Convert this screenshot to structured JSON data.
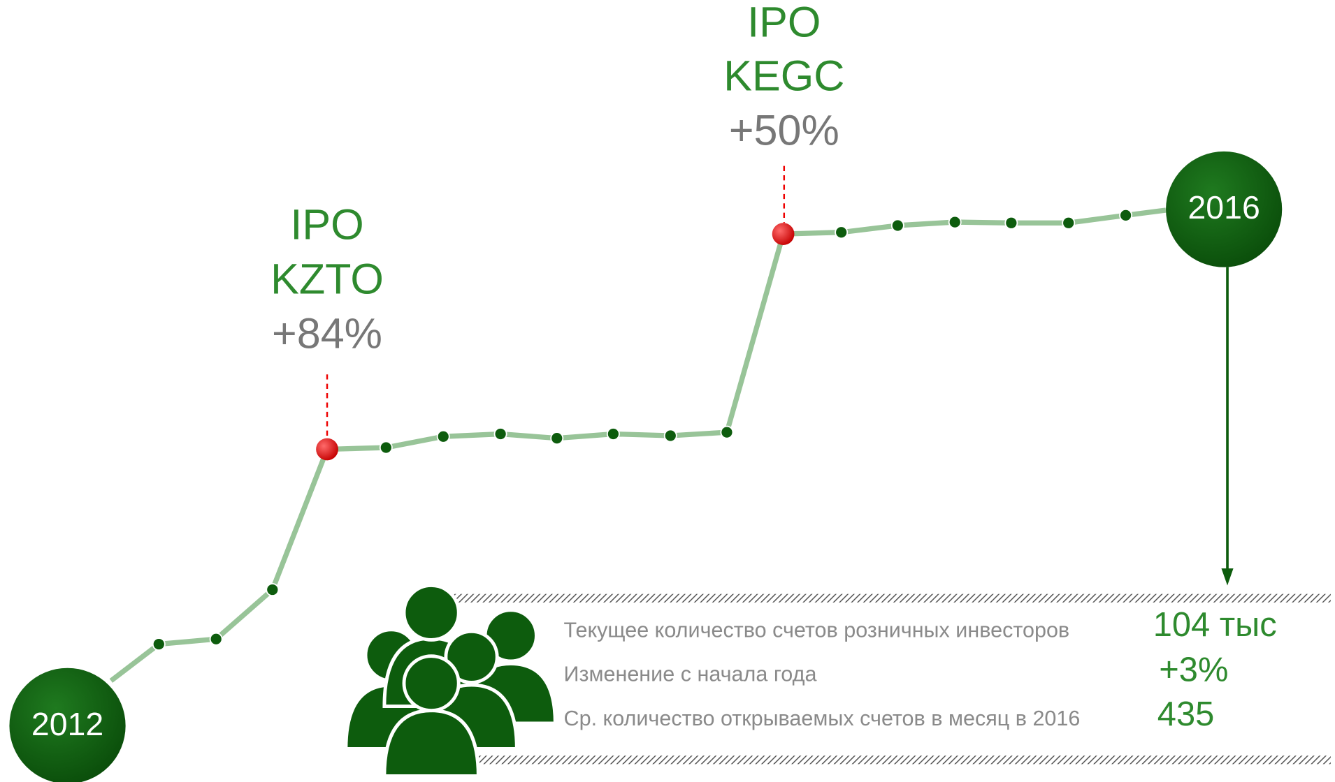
{
  "start_year": "2012",
  "end_year": "2016",
  "events": [
    {
      "label": "IPO",
      "ticker": "KZTO",
      "change": "+84%"
    },
    {
      "label": "IPO",
      "ticker": "KEGC",
      "change": "+50%"
    }
  ],
  "stats": [
    {
      "label": "Текущее количество счетов розничных инвесторов",
      "value": "104 тыс"
    },
    {
      "label": "Изменение с начала года",
      "value": "+3%"
    },
    {
      "label": "Ср. количество открываемых счетов в месяц в 2016",
      "value": "435"
    }
  ]
}
